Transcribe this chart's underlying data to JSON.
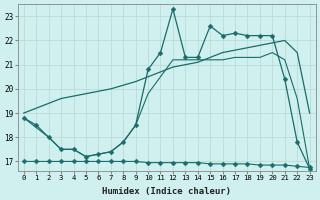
{
  "xlabel": "Humidex (Indice chaleur)",
  "bg_color": "#cff0ee",
  "grid_color": "#b8d8d0",
  "line_color": "#1a6b6b",
  "xlim_min": -0.5,
  "xlim_max": 23.5,
  "ylim_min": 16.6,
  "ylim_max": 23.5,
  "xticks": [
    0,
    1,
    2,
    3,
    4,
    5,
    6,
    7,
    8,
    9,
    10,
    11,
    12,
    13,
    14,
    15,
    16,
    17,
    18,
    19,
    20,
    21,
    22,
    23
  ],
  "yticks": [
    17,
    18,
    19,
    20,
    21,
    22,
    23
  ],
  "s1_x": [
    0,
    1,
    2,
    3,
    4,
    5,
    6,
    7,
    8,
    9,
    10,
    11,
    12,
    13,
    14,
    15,
    16,
    17,
    18,
    19,
    20,
    21,
    22,
    23
  ],
  "s1_y": [
    18.8,
    18.5,
    18.0,
    17.5,
    17.5,
    17.2,
    17.3,
    17.4,
    17.8,
    18.5,
    20.8,
    21.5,
    23.3,
    21.3,
    21.3,
    22.6,
    22.2,
    22.3,
    22.2,
    22.2,
    22.2,
    20.4,
    17.8,
    16.7
  ],
  "s2_x": [
    0,
    1,
    2,
    3,
    4,
    5,
    6,
    7,
    8,
    9,
    10,
    11,
    12,
    13,
    14,
    15,
    16,
    17,
    18,
    19,
    20,
    21,
    22,
    23
  ],
  "s2_y": [
    19.0,
    19.2,
    19.4,
    19.6,
    19.7,
    19.8,
    19.9,
    20.0,
    20.15,
    20.3,
    20.5,
    20.7,
    20.9,
    21.0,
    21.1,
    21.3,
    21.5,
    21.6,
    21.7,
    21.8,
    21.9,
    22.0,
    21.5,
    19.0
  ],
  "s3_x": [
    0,
    1,
    2,
    3,
    4,
    5,
    6,
    7,
    8,
    9,
    10,
    11,
    12,
    13,
    14,
    15,
    16,
    17,
    18,
    19,
    20,
    21,
    22,
    23
  ],
  "s3_y": [
    18.8,
    18.4,
    18.0,
    17.5,
    17.5,
    17.2,
    17.3,
    17.4,
    17.8,
    18.5,
    19.8,
    20.5,
    21.2,
    21.2,
    21.2,
    21.2,
    21.2,
    21.3,
    21.3,
    21.3,
    21.5,
    21.2,
    19.6,
    16.7
  ],
  "s4_x": [
    0,
    1,
    2,
    3,
    4,
    5,
    6,
    7,
    8,
    9,
    10,
    11,
    12,
    13,
    14,
    15,
    16,
    17,
    18,
    19,
    20,
    21,
    22,
    23
  ],
  "s4_y": [
    17.0,
    17.0,
    17.0,
    17.0,
    17.0,
    17.0,
    17.0,
    17.0,
    17.0,
    17.0,
    16.95,
    16.95,
    16.95,
    16.95,
    16.95,
    16.9,
    16.9,
    16.9,
    16.9,
    16.85,
    16.85,
    16.85,
    16.8,
    16.75
  ]
}
